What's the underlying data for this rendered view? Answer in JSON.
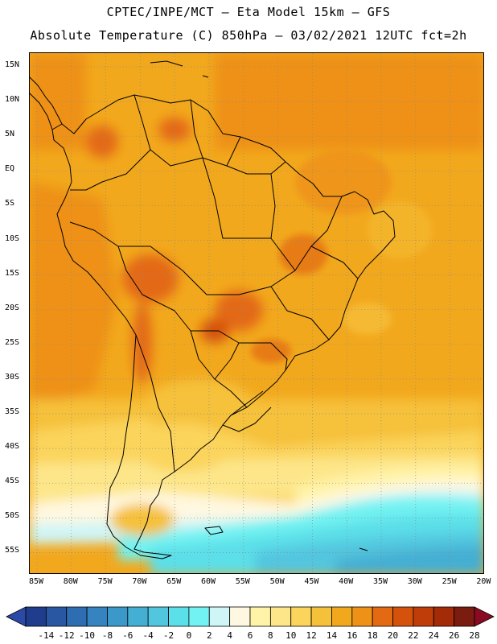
{
  "header": {
    "line1": "CPTEC/INPE/MCT –  Eta Model 15km – GFS",
    "line2": "Absolute Temperature (C) 850hPa – 03/02/2021 12UTC fct=2h"
  },
  "axes": {
    "lat_labels": [
      "15N",
      "10N",
      "5N",
      "EQ",
      "5S",
      "10S",
      "15S",
      "20S",
      "25S",
      "30S",
      "35S",
      "40S",
      "45S",
      "50S",
      "55S"
    ],
    "lon_labels": [
      "85W",
      "80W",
      "75W",
      "70W",
      "65W",
      "60W",
      "55W",
      "50W",
      "45W",
      "40W",
      "35W",
      "30W",
      "25W",
      "20W"
    ]
  },
  "colorbar": {
    "labels": [
      "-14",
      "-12",
      "-10",
      "-8",
      "-6",
      "-4",
      "-2",
      "0",
      "2",
      "4",
      "6",
      "8",
      "10",
      "12",
      "14",
      "16",
      "18",
      "20",
      "22",
      "24",
      "26",
      "28"
    ],
    "colors": [
      "#1f3d8c",
      "#2a57a2",
      "#2f6db3",
      "#3583bf",
      "#3a99c9",
      "#45afd3",
      "#52c6df",
      "#5bdfe8",
      "#72f2f2",
      "#cff5f7",
      "#fff8e0",
      "#fff3a8",
      "#fde68a",
      "#fbd45c",
      "#f6c13a",
      "#f2a81d",
      "#ee9117",
      "#e36912",
      "#d4520c",
      "#bf3d09",
      "#a32b07",
      "#7a1c10"
    ],
    "under_color": "#2b4aa6",
    "over_color": "#8a0a24"
  }
}
